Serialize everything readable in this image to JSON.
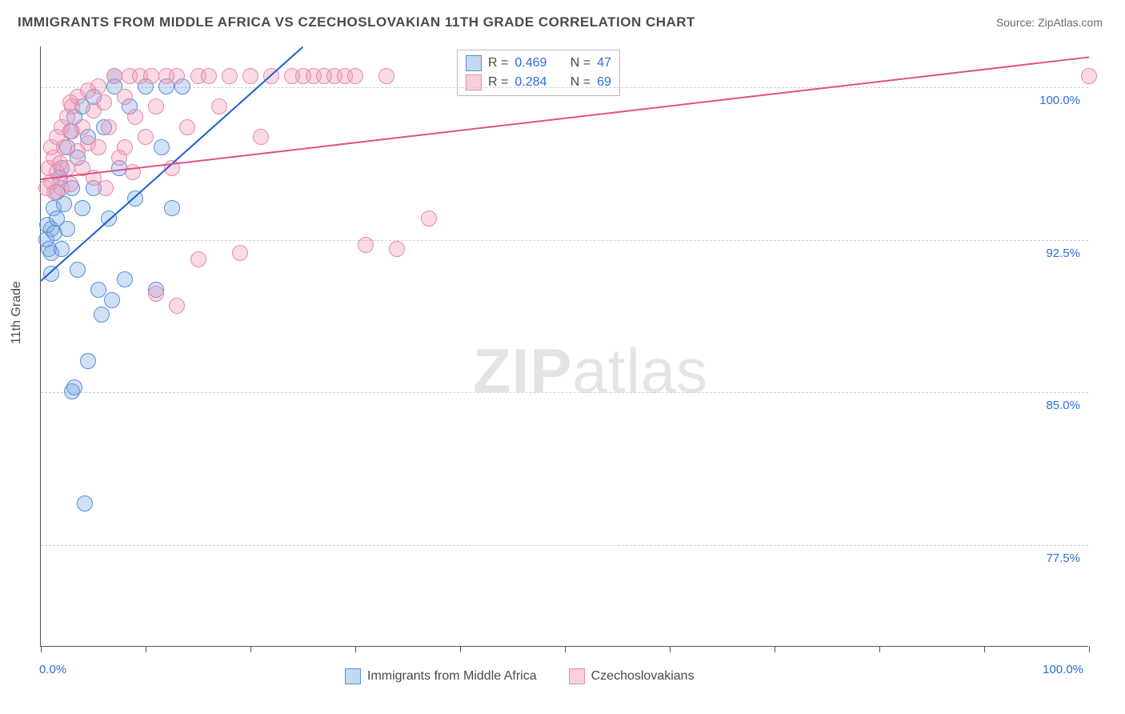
{
  "title": "IMMIGRANTS FROM MIDDLE AFRICA VS CZECHOSLOVAKIAN 11TH GRADE CORRELATION CHART",
  "source": "Source: ZipAtlas.com",
  "axis": {
    "y_title": "11th Grade",
    "x_min": 0,
    "x_max": 100,
    "y_min": 72.5,
    "y_max": 102,
    "x_ticks": [
      0,
      10,
      20,
      30,
      40,
      50,
      60,
      70,
      80,
      90,
      100
    ],
    "x_tick_labels": {
      "0": "0.0%",
      "100": "100.0%"
    },
    "y_gridlines": [
      77.5,
      85.0,
      92.5,
      100.0
    ],
    "y_tick_labels": {
      "77.5": "77.5%",
      "85.0": "85.0%",
      "92.5": "92.5%",
      "100.0": "100.0%"
    }
  },
  "watermark": {
    "bold": "ZIP",
    "rest": "atlas"
  },
  "series": [
    {
      "id": "blue",
      "label": "Immigrants from Middle Africa",
      "fill": "rgba(120,170,230,0.35)",
      "stroke": "#5b8ed6",
      "r": 0.469,
      "n": 47,
      "marker_r": 10,
      "trend": {
        "x1": 0,
        "y1": 90.5,
        "x2": 25,
        "y2": 102,
        "color": "#1e5fd1"
      },
      "points": [
        [
          0.5,
          92.5
        ],
        [
          0.6,
          93.2
        ],
        [
          0.8,
          92.0
        ],
        [
          1.0,
          93.0
        ],
        [
          1.0,
          91.8
        ],
        [
          1.2,
          94.0
        ],
        [
          1.3,
          92.8
        ],
        [
          1.5,
          93.5
        ],
        [
          1.5,
          94.8
        ],
        [
          1.8,
          95.5
        ],
        [
          2.0,
          92.0
        ],
        [
          2.0,
          96.0
        ],
        [
          2.2,
          94.2
        ],
        [
          2.5,
          97.0
        ],
        [
          2.5,
          93.0
        ],
        [
          2.8,
          97.8
        ],
        [
          3.0,
          95.0
        ],
        [
          3.2,
          98.5
        ],
        [
          3.5,
          96.5
        ],
        [
          3.5,
          91.0
        ],
        [
          4.0,
          99.0
        ],
        [
          4.0,
          94.0
        ],
        [
          4.5,
          97.5
        ],
        [
          5.0,
          99.5
        ],
        [
          5.0,
          95.0
        ],
        [
          5.5,
          90.0
        ],
        [
          6.0,
          98.0
        ],
        [
          6.5,
          93.5
        ],
        [
          7.0,
          100.0
        ],
        [
          7.5,
          96.0
        ],
        [
          8.0,
          90.5
        ],
        [
          8.5,
          99.0
        ],
        [
          9.0,
          94.5
        ],
        [
          10.0,
          100.0
        ],
        [
          11.0,
          90.0
        ],
        [
          11.5,
          97.0
        ],
        [
          12.0,
          100.0
        ],
        [
          12.5,
          94.0
        ],
        [
          13.5,
          100.0
        ],
        [
          3.0,
          85.0
        ],
        [
          3.2,
          85.2
        ],
        [
          4.5,
          86.5
        ],
        [
          5.8,
          88.8
        ],
        [
          6.8,
          89.5
        ],
        [
          4.2,
          79.5
        ],
        [
          7.0,
          100.5
        ],
        [
          1.0,
          90.8
        ]
      ]
    },
    {
      "id": "pink",
      "label": "Czechoslovakians",
      "fill": "rgba(240,150,180,0.35)",
      "stroke": "#e68aab",
      "r": 0.284,
      "n": 69,
      "marker_r": 10,
      "trend": {
        "x1": 0,
        "y1": 95.5,
        "x2": 100,
        "y2": 101.5,
        "color": "#e14f88"
      },
      "points": [
        [
          0.5,
          95.0
        ],
        [
          0.8,
          96.0
        ],
        [
          1.0,
          95.3
        ],
        [
          1.0,
          97.0
        ],
        [
          1.2,
          96.5
        ],
        [
          1.3,
          94.8
        ],
        [
          1.5,
          95.8
        ],
        [
          1.5,
          97.5
        ],
        [
          1.8,
          96.2
        ],
        [
          2.0,
          98.0
        ],
        [
          2.0,
          95.0
        ],
        [
          2.2,
          97.0
        ],
        [
          2.5,
          98.5
        ],
        [
          2.5,
          96.0
        ],
        [
          2.8,
          95.2
        ],
        [
          3.0,
          99.0
        ],
        [
          3.0,
          97.8
        ],
        [
          3.5,
          96.8
        ],
        [
          3.5,
          99.5
        ],
        [
          4.0,
          98.0
        ],
        [
          4.0,
          96.0
        ],
        [
          4.5,
          99.8
        ],
        [
          4.5,
          97.2
        ],
        [
          5.0,
          98.8
        ],
        [
          5.0,
          95.5
        ],
        [
          5.5,
          100.0
        ],
        [
          5.5,
          97.0
        ],
        [
          6.0,
          99.2
        ],
        [
          6.5,
          98.0
        ],
        [
          7.0,
          100.5
        ],
        [
          7.5,
          96.5
        ],
        [
          8.0,
          99.5
        ],
        [
          8.0,
          97.0
        ],
        [
          8.5,
          100.5
        ],
        [
          9.0,
          98.5
        ],
        [
          9.5,
          100.5
        ],
        [
          10.0,
          97.5
        ],
        [
          10.5,
          100.5
        ],
        [
          11.0,
          99.0
        ],
        [
          12.0,
          100.5
        ],
        [
          12.5,
          96.0
        ],
        [
          13.0,
          100.5
        ],
        [
          14.0,
          98.0
        ],
        [
          15.0,
          100.5
        ],
        [
          15.0,
          91.5
        ],
        [
          16.0,
          100.5
        ],
        [
          17.0,
          99.0
        ],
        [
          18.0,
          100.5
        ],
        [
          19.0,
          91.8
        ],
        [
          20.0,
          100.5
        ],
        [
          21.0,
          97.5
        ],
        [
          22.0,
          100.5
        ],
        [
          24.0,
          100.5
        ],
        [
          25.0,
          100.5
        ],
        [
          26.0,
          100.5
        ],
        [
          27.0,
          100.5
        ],
        [
          28.0,
          100.5
        ],
        [
          29.0,
          100.5
        ],
        [
          30.0,
          100.5
        ],
        [
          31.0,
          92.2
        ],
        [
          33.0,
          100.5
        ],
        [
          34.0,
          92.0
        ],
        [
          11.0,
          89.8
        ],
        [
          13.0,
          89.2
        ],
        [
          37.0,
          93.5
        ],
        [
          2.8,
          99.2
        ],
        [
          6.2,
          95.0
        ],
        [
          8.8,
          95.8
        ],
        [
          100.0,
          100.5
        ]
      ]
    }
  ],
  "legend_top_rows": [
    {
      "swatch": "blue",
      "r": "0.469",
      "n": "47"
    },
    {
      "swatch": "pink",
      "r": "0.284",
      "n": "69"
    }
  ],
  "legend_bottom": [
    {
      "swatch": "blue",
      "label": "Immigrants from Middle Africa"
    },
    {
      "swatch": "pink",
      "label": "Czechoslovakians"
    }
  ],
  "colors": {
    "blue_fill": "rgba(120,170,230,0.45)",
    "blue_stroke": "#5b8ed6",
    "pink_fill": "rgba(240,150,180,0.45)",
    "pink_stroke": "#e68aab"
  }
}
